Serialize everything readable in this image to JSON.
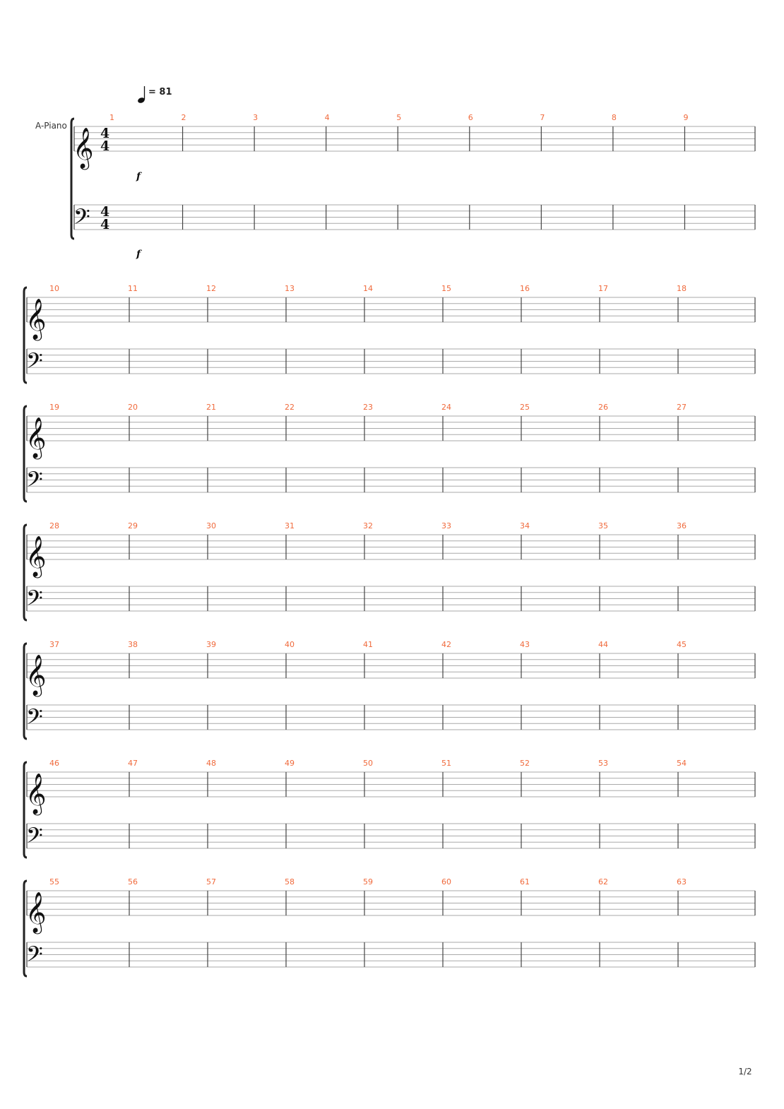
{
  "instrument": "A-Piano",
  "tempo": {
    "bpm_text": "= 81",
    "note_glyph": "quarter-note"
  },
  "dynamics": {
    "first_system": "f"
  },
  "time_signature": {
    "top": "4",
    "bottom": "4"
  },
  "clefs": {
    "upper": "treble",
    "lower": "bass"
  },
  "clef_glyphs": {
    "treble": "𝄞",
    "bass": "𝄢"
  },
  "colors": {
    "measure_number": "#f06a3c",
    "staff_line": "#aaaaaa",
    "barline": "#444444",
    "bracket": "#222222"
  },
  "systems": [
    {
      "measures": [
        "1",
        "2",
        "3",
        "4",
        "5",
        "6",
        "7",
        "8",
        "9"
      ]
    },
    {
      "measures": [
        "10",
        "11",
        "12",
        "13",
        "14",
        "15",
        "16",
        "17",
        "18"
      ]
    },
    {
      "measures": [
        "19",
        "20",
        "21",
        "22",
        "23",
        "24",
        "25",
        "26",
        "27"
      ]
    },
    {
      "measures": [
        "28",
        "29",
        "30",
        "31",
        "32",
        "33",
        "34",
        "35",
        "36"
      ]
    },
    {
      "measures": [
        "37",
        "38",
        "39",
        "40",
        "41",
        "42",
        "43",
        "44",
        "45"
      ]
    },
    {
      "measures": [
        "46",
        "47",
        "48",
        "49",
        "50",
        "51",
        "52",
        "53",
        "54"
      ]
    },
    {
      "measures": [
        "55",
        "56",
        "57",
        "58",
        "59",
        "60",
        "61",
        "62",
        "63"
      ]
    }
  ],
  "page_number": "1/2"
}
